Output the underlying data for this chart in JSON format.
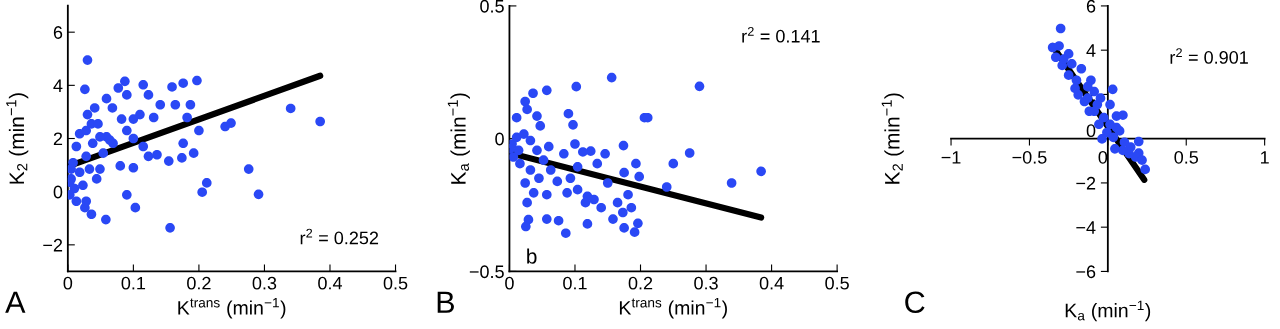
{
  "chart_data": [
    {
      "type": "scatter",
      "xlabel": "K$^{trans}$ (min$^{−1}$)",
      "ylabel": "K$_{2}$ (min$^{−1}$)",
      "annotations": [
        "r$^{2}$ = 0.252",
        "A"
      ],
      "xlim": [
        0,
        0.5
      ],
      "ylim": [
        -3,
        7
      ],
      "xticks": [
        0,
        0.1,
        0.2,
        0.3,
        0.4,
        0.5
      ],
      "yticks": [
        {
          "value": -2,
          "label": "−2"
        },
        0,
        2,
        4,
        6
      ],
      "grid": false,
      "series": [
        {
          "marker": "circle",
          "color": "#2a48f5",
          "x": [
            0.03,
            0.026,
            0.03,
            0.058,
            0.156,
            0.103,
            0.09,
            0.205,
            0.212,
            0.291,
            0.276,
            0.34,
            0.385,
            0.24,
            0.249,
            0.197,
            0.176,
            0.159,
            0.115,
            0.087,
            0.077,
            0.059,
            0.068,
            0.09,
            0.123,
            0.141,
            0.164,
            0.187,
            0.182,
            0.2,
            0.192,
            0.176,
            0.174,
            0.154,
            0.136,
            0.123,
            0.115,
            0.1,
            0.09,
            0.11,
            0.1,
            0.131,
            0.082,
            0.1,
            0.08,
            0.069,
            0.054,
            0.049,
            0.044,
            0.036,
            0.026,
            0.013,
            0.028,
            0.005,
            0.008,
            0.013,
            0.018,
            0.028,
            0.036,
            0.046,
            0.038,
            0.028,
            0.018,
            0.003,
            0.01,
            0.023,
            0.033,
            0.059,
            0.049,
            0.005,
            0.041,
            0.064,
            0.003
          ],
          "values": [
            4.95,
            3.85,
            2.9,
            -1.05,
            -1.36,
            -0.6,
            -0.12,
            -0.02,
            0.33,
            -0.1,
            0.85,
            3.13,
            2.64,
            2.45,
            2.58,
            4.18,
            4.08,
            3.94,
            4.02,
            4.15,
            3.9,
            3.5,
            3.15,
            3.64,
            3.64,
            3.27,
            3.27,
            3.27,
            2.79,
            2.3,
            1.45,
            1.82,
            1.27,
            1.15,
            1.39,
            1.33,
            1.7,
            2.0,
            2.3,
            2.9,
            2.73,
            2.79,
            2.73,
            0.9,
            0.97,
            1.82,
            1.45,
            0.85,
            0.48,
            -0.85,
            -0.6,
            -0.36,
            -0.36,
            0.48,
            1.09,
            1.7,
            2.18,
            2.3,
            2.55,
            2.55,
            1.82,
            1.33,
            0.73,
            0.36,
            0.12,
            0.24,
            0.85,
            2.06,
            2.06,
            0.85,
            3.15,
            1.94,
            -0.12
          ]
        },
        {
          "type": "line",
          "color": "#000000",
          "x": [
            0,
            0.385
          ],
          "values": [
            0.95,
            4.36
          ]
        }
      ]
    },
    {
      "type": "scatter",
      "xlabel": "K$^{trans}$ (min$^{−1}$)",
      "ylabel": "K$_{a}$ (min$^{−1}$)",
      "annotations": [
        "r$^{2}$ = 0.141",
        "b",
        "B"
      ],
      "xlim": [
        0,
        0.5
      ],
      "ylim": [
        -0.5,
        0.5
      ],
      "xticks": [
        0,
        0.1,
        0.2,
        0.3,
        0.4,
        0.5
      ],
      "yticks": [
        {
          "value": -0.5,
          "label": "−0.5"
        },
        0,
        0.5
      ],
      "grid": false,
      "series": [
        {
          "marker": "circle",
          "color": "#2a48f5",
          "x": [
            0.156,
            0.29,
            0.102,
            0.057,
            0.036,
            0.024,
            0.027,
            0.042,
            0.09,
            0.097,
            0.206,
            0.211,
            0.011,
            0.047,
            0.1,
            0.174,
            0.275,
            0.25,
            0.384,
            0.339,
            0.24,
            0.193,
            0.198,
            0.175,
            0.15,
            0.134,
            0.146,
            0.124,
            0.112,
            0.093,
            0.083,
            0.06,
            0.073,
            0.057,
            0.088,
            0.104,
            0.119,
            0.129,
            0.14,
            0.165,
            0.181,
            0.186,
            0.173,
            0.158,
            0.196,
            0.191,
            0.175,
            0.119,
            0.086,
            0.075,
            0.057,
            0.029,
            0.025,
            0.027,
            0.037,
            0.024,
            0.045,
            0.032,
            0.016,
            0.006,
            0.004,
            0.011,
            0.022,
            0.032,
            0.042,
            0.052,
            0.014,
            0.001,
            0.063,
            0.104,
            0.116
          ],
          "values": [
            0.23,
            0.197,
            0.196,
            0.182,
            0.171,
            0.14,
            0.11,
            0.085,
            0.094,
            0.052,
            0.079,
            0.079,
            0.079,
            0.048,
            -0.02,
            -0.026,
            -0.054,
            -0.094,
            -0.123,
            -0.167,
            -0.182,
            -0.094,
            -0.143,
            -0.128,
            -0.167,
            -0.094,
            -0.057,
            -0.047,
            -0.05,
            -0.149,
            -0.057,
            -0.03,
            -0.161,
            -0.211,
            -0.204,
            -0.192,
            -0.217,
            -0.229,
            -0.26,
            -0.241,
            -0.211,
            -0.26,
            -0.278,
            -0.303,
            -0.319,
            -0.352,
            -0.336,
            -0.321,
            -0.356,
            -0.309,
            -0.303,
            -0.305,
            -0.331,
            -0.241,
            -0.204,
            -0.167,
            -0.149,
            -0.118,
            -0.094,
            -0.069,
            -0.02,
            0.005,
            0.017,
            -0.007,
            -0.044,
            -0.081,
            -0.044,
            -0.038,
            -0.118,
            -0.106,
            -0.241
          ]
        },
        {
          "type": "line",
          "color": "#000000",
          "x": [
            0,
            0.384
          ],
          "values": [
            -0.054,
            -0.297
          ]
        }
      ]
    },
    {
      "type": "scatter",
      "xlabel": "K$_{a}$ (min$^{−1}$)",
      "ylabel": "K$_{2}$ (min$^{−1}$)",
      "annotations": [
        "r$^{2}$ = 0.901",
        "C"
      ],
      "xlim": [
        -1,
        1
      ],
      "ylim": [
        -6,
        6
      ],
      "xticks": [
        {
          "value": -1,
          "label": "−1"
        },
        {
          "value": -0.5,
          "label": "−0.5"
        },
        0,
        0.5,
        1
      ],
      "yticks": [
        {
          "value": -6,
          "label": "−6"
        },
        {
          "value": -4,
          "label": "−4"
        },
        {
          "value": -2,
          "label": "−2"
        },
        0,
        2,
        4,
        6
      ],
      "grid": false,
      "series": [
        {
          "marker": "circle",
          "color": "#2a48f5",
          "x": [
            -0.301,
            -0.352,
            -0.311,
            -0.25,
            -0.332,
            -0.23,
            -0.169,
            -0.291,
            -0.25,
            -0.2,
            -0.108,
            -0.128,
            -0.189,
            -0.087,
            -0.149,
            -0.047,
            0.031,
            0.014,
            -0.087,
            0.096,
            0.055,
            -0.026,
            -0.057,
            0.014,
            0.075,
            0.055,
            -0.006,
            0.035,
            0.106,
            0.197,
            0.146,
            0.045,
            0.197,
            0.177,
            0.218,
            0.238,
            0.136,
            0.096,
            -0.037,
            -0.128,
            -0.209,
            -0.281,
            -0.067,
            -0.118
          ],
          "values": [
            4.98,
            4.12,
            4.19,
            3.83,
            3.68,
            3.38,
            3.16,
            3.31,
            2.87,
            2.64,
            2.64,
            2.35,
            1.98,
            2.13,
            1.68,
            1.83,
            2.23,
            1.54,
            1.24,
            1.06,
            1.02,
            0.95,
            0.65,
            0.65,
            0.35,
            0.5,
            0.28,
            0.06,
            -0.16,
            -0.13,
            -0.38,
            -0.46,
            -0.65,
            -0.83,
            -0.97,
            -1.39,
            -0.68,
            -0.53,
            -0.01,
            1.83,
            2.27,
            3.6,
            1.54,
            1.24
          ]
        },
        {
          "type": "line",
          "color": "#000000",
          "x": [
            -0.352,
            0.232
          ],
          "values": [
            4.19,
            -1.86
          ]
        }
      ]
    }
  ]
}
